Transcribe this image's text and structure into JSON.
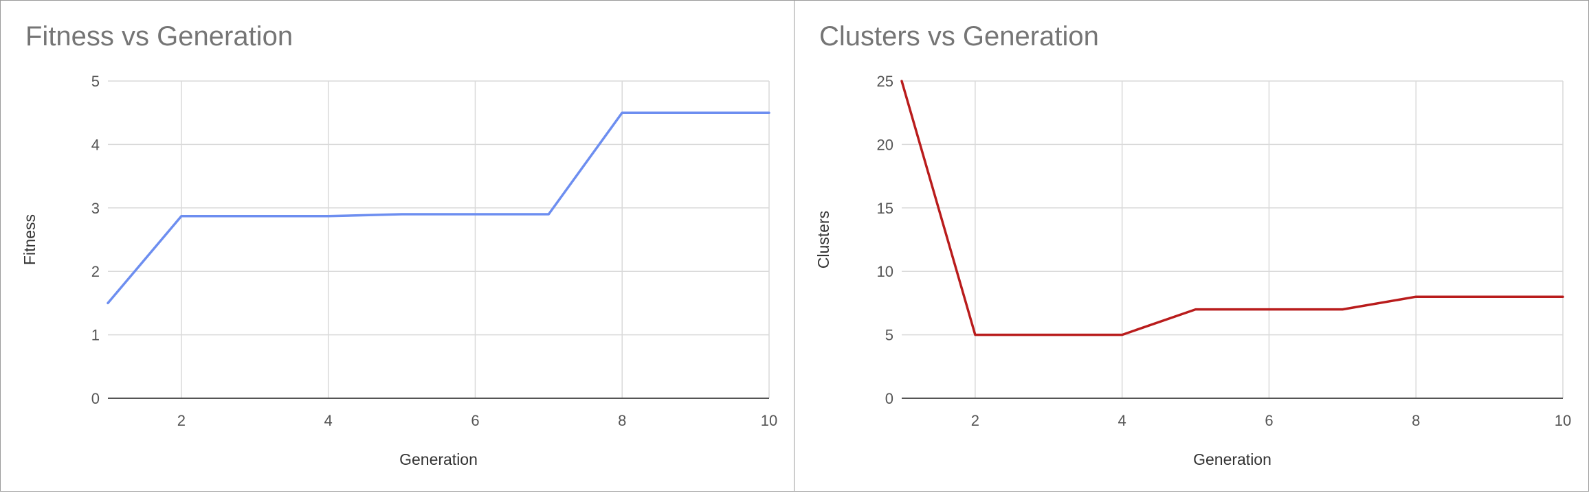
{
  "panels": [
    {
      "title": "Fitness vs Generation"
    },
    {
      "title": "Clusters vs Generation"
    }
  ],
  "chart_data": [
    {
      "type": "line",
      "title": "Fitness vs Generation",
      "xlabel": "Generation",
      "ylabel": "Fitness",
      "xlim": [
        1,
        10
      ],
      "ylim": [
        0,
        5
      ],
      "xticks": [
        2,
        4,
        6,
        8,
        10
      ],
      "yticks": [
        0,
        1,
        2,
        3,
        4,
        5
      ],
      "grid": true,
      "color": "#6d8ef0",
      "series": [
        {
          "x": [
            1,
            2,
            3,
            4,
            5,
            6,
            7,
            8,
            9,
            10
          ],
          "values": [
            1.5,
            2.87,
            2.87,
            2.87,
            2.9,
            2.9,
            2.9,
            4.5,
            4.5,
            4.5
          ]
        }
      ]
    },
    {
      "type": "line",
      "title": "Clusters vs Generation",
      "xlabel": "Generation",
      "ylabel": "Clusters",
      "xlim": [
        1,
        10
      ],
      "ylim": [
        0,
        25
      ],
      "xticks": [
        2,
        4,
        6,
        8,
        10
      ],
      "yticks": [
        0,
        5,
        10,
        15,
        20,
        25
      ],
      "grid": true,
      "color": "#b91c1c",
      "series": [
        {
          "x": [
            1,
            2,
            3,
            4,
            5,
            6,
            7,
            8,
            9,
            10
          ],
          "values": [
            25,
            5,
            5,
            5,
            7,
            7,
            7,
            8,
            8,
            8
          ]
        }
      ]
    }
  ]
}
